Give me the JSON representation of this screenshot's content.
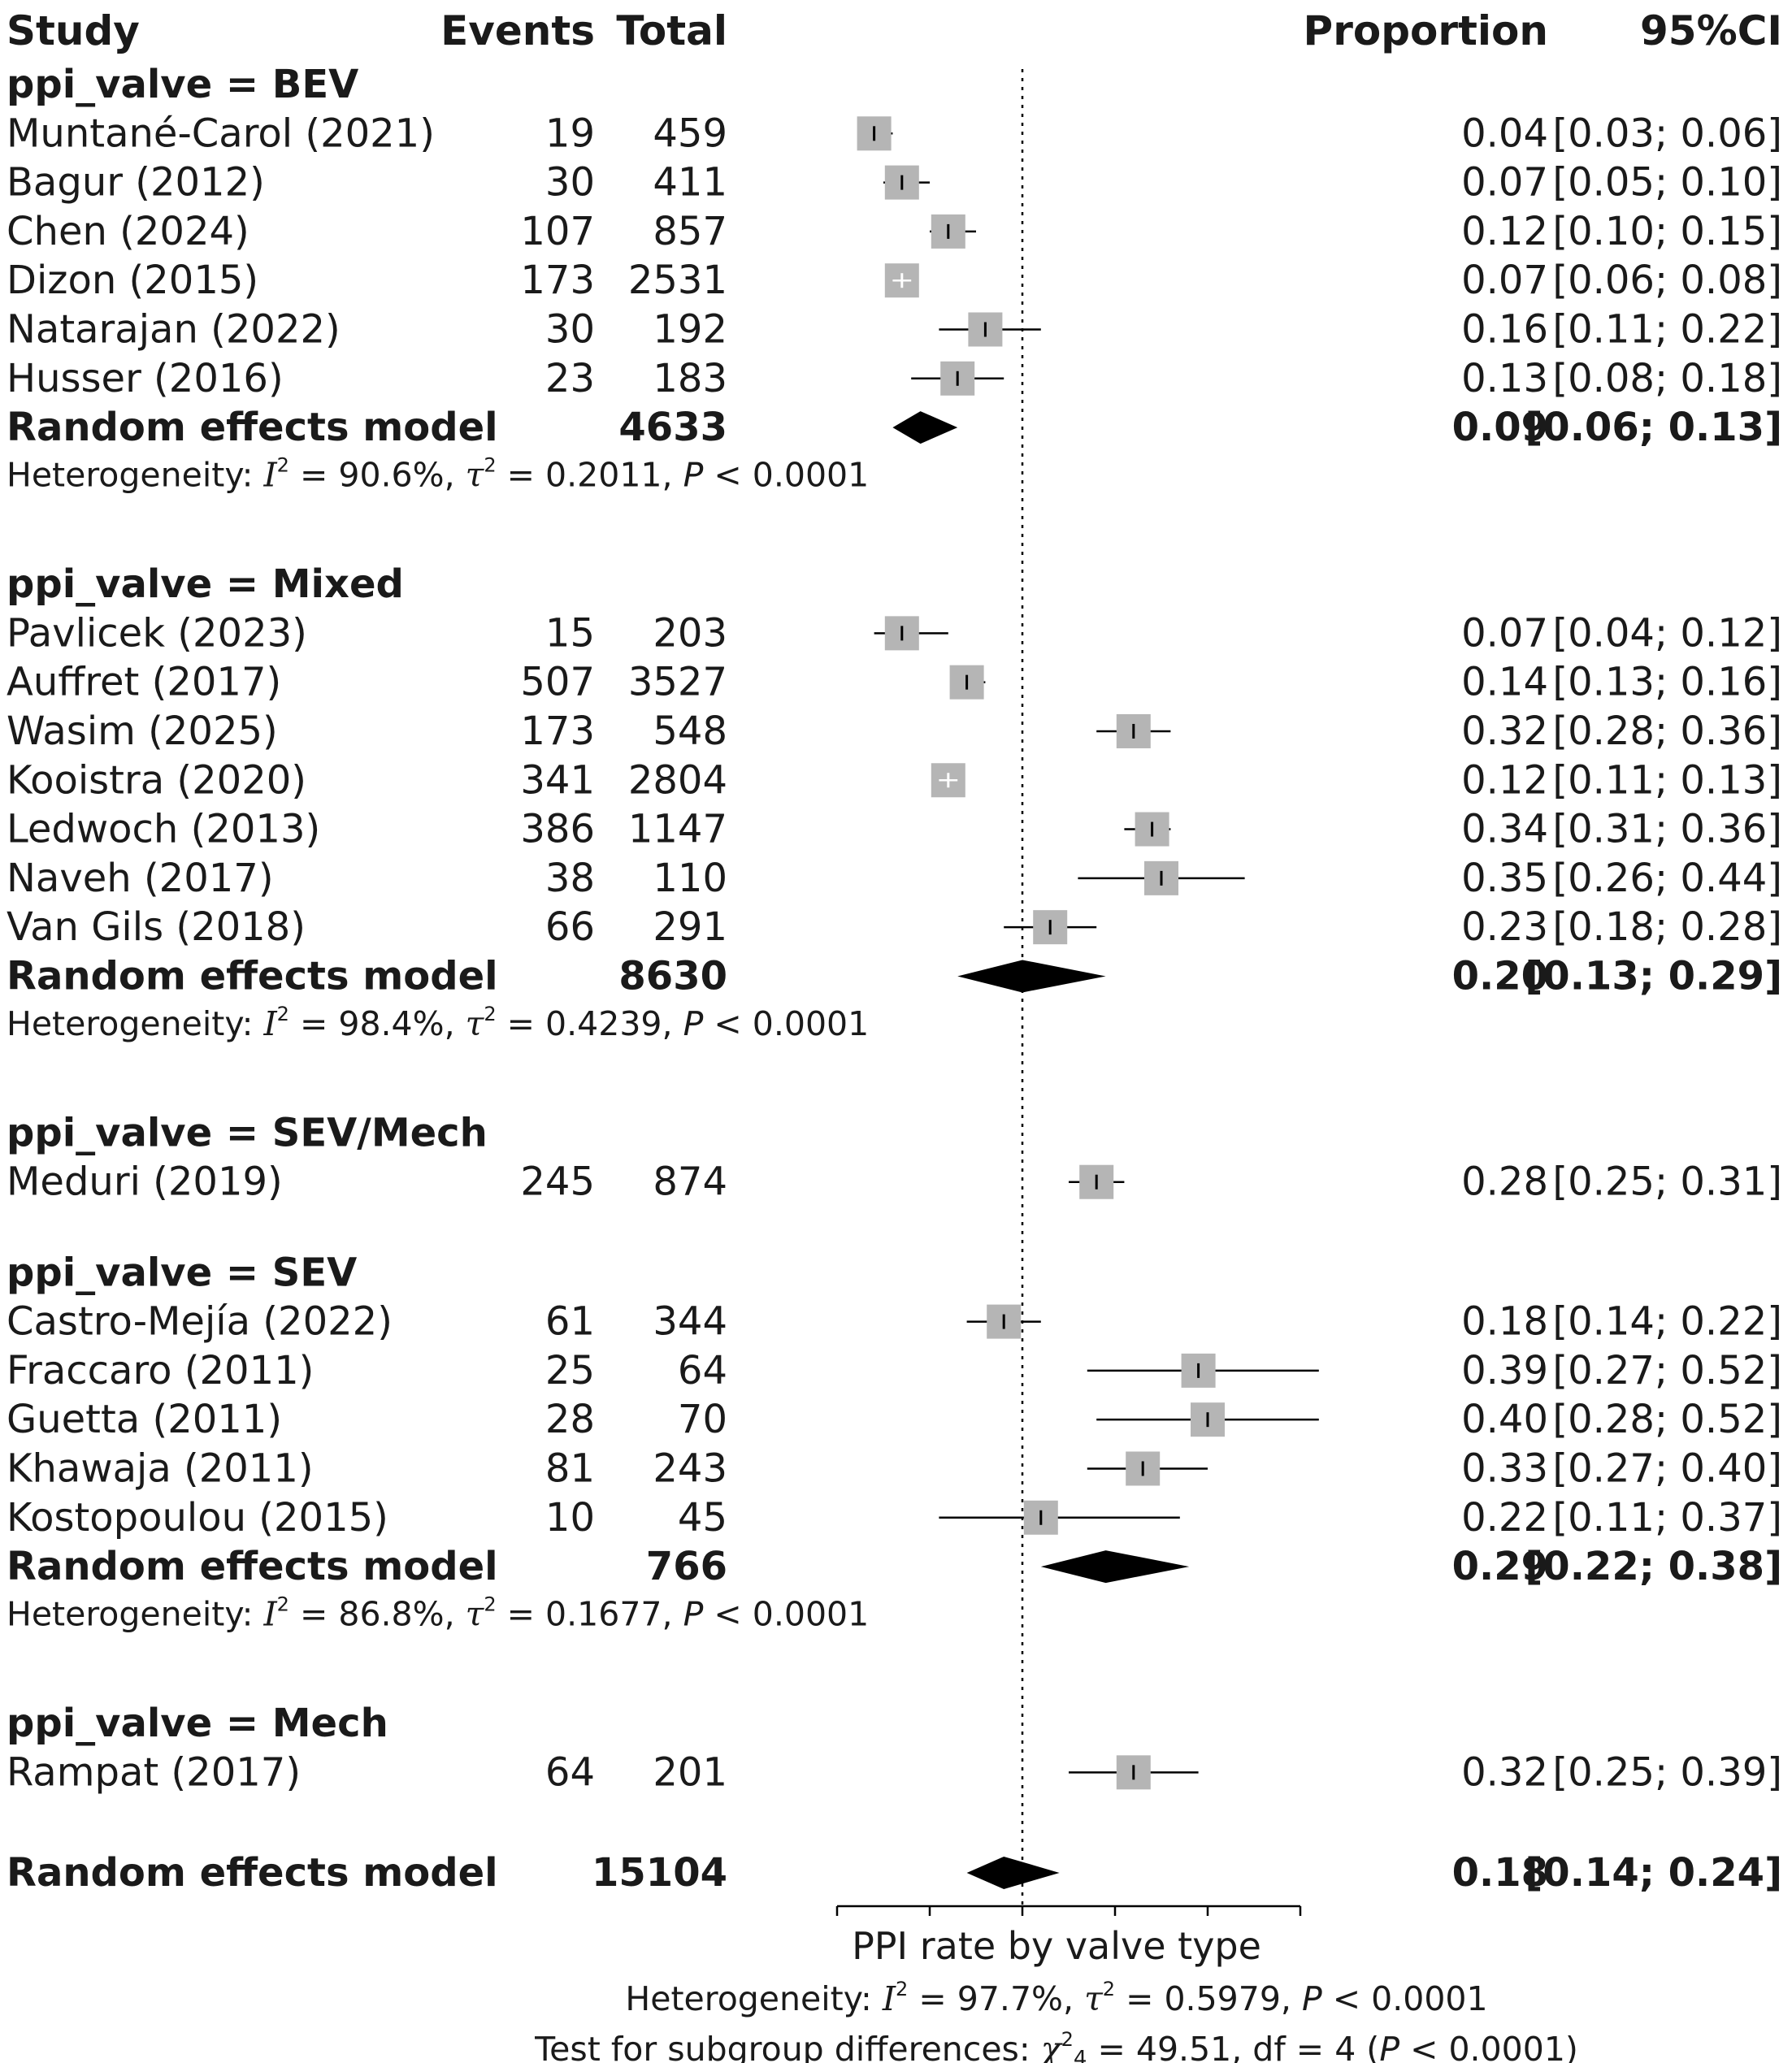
{
  "chart_data": {
    "type": "forest",
    "headers": {
      "study": "Study",
      "events": "Events",
      "total": "Total",
      "proportion": "Proportion",
      "ci": "95%CI"
    },
    "xlim": [
      0,
      0.5
    ],
    "reference_line": 0.2,
    "axis_ticks": [
      0,
      0.1,
      0.2,
      0.3,
      0.4,
      0.5
    ],
    "xlabel": "PPI rate by valve type",
    "subgroups": [
      {
        "label": "ppi_valve = BEV",
        "studies": [
          {
            "study": "Muntané-Carol (2021)",
            "events": "19",
            "total": "459",
            "prop": 0.04,
            "lo": 0.03,
            "hi": 0.06,
            "prop_text": "0.04",
            "ci_text": "[0.03; 0.06]",
            "weight": 1.0
          },
          {
            "study": "Bagur (2012)",
            "events": "30",
            "total": "411",
            "prop": 0.07,
            "lo": 0.05,
            "hi": 0.1,
            "prop_text": "0.07",
            "ci_text": "[0.05; 0.10]",
            "weight": 1.0
          },
          {
            "study": "Chen (2024)",
            "events": "107",
            "total": "857",
            "prop": 0.12,
            "lo": 0.1,
            "hi": 0.15,
            "prop_text": "0.12",
            "ci_text": "[0.10; 0.15]",
            "weight": 1.0
          },
          {
            "study": "Dizon (2015)",
            "events": "173",
            "total": "2531",
            "prop": 0.07,
            "lo": 0.06,
            "hi": 0.08,
            "prop_text": "0.07",
            "ci_text": "[0.06; 0.08]",
            "weight": 1.0
          },
          {
            "study": "Natarajan (2022)",
            "events": "30",
            "total": "192",
            "prop": 0.16,
            "lo": 0.11,
            "hi": 0.22,
            "prop_text": "0.16",
            "ci_text": "[0.11; 0.22]",
            "weight": 1.0
          },
          {
            "study": "Husser (2016)",
            "events": "23",
            "total": "183",
            "prop": 0.13,
            "lo": 0.08,
            "hi": 0.18,
            "prop_text": "0.13",
            "ci_text": "[0.08; 0.18]",
            "weight": 1.0
          }
        ],
        "summary": {
          "label": "Random effects model",
          "total": "4633",
          "prop": 0.09,
          "lo": 0.06,
          "hi": 0.13,
          "prop_text": "0.09",
          "ci_text": "[0.06; 0.13]"
        },
        "heterogeneity": {
          "prefix": "Heterogeneity: ",
          "i2": "I",
          "i2_value": " = 90.6%, ",
          "tau": "τ",
          "tau_value": " = 0.2011, ",
          "p": "P",
          "p_value": " < 0.0001"
        }
      },
      {
        "label": "ppi_valve = Mixed",
        "studies": [
          {
            "study": "Pavlicek (2023)",
            "events": "15",
            "total": "203",
            "prop": 0.07,
            "lo": 0.04,
            "hi": 0.12,
            "prop_text": "0.07",
            "ci_text": "[0.04; 0.12]",
            "weight": 1.0
          },
          {
            "study": "Auffret (2017)",
            "events": "507",
            "total": "3527",
            "prop": 0.14,
            "lo": 0.13,
            "hi": 0.16,
            "prop_text": "0.14",
            "ci_text": "[0.13; 0.16]",
            "weight": 1.0
          },
          {
            "study": "Wasim (2025)",
            "events": "173",
            "total": "548",
            "prop": 0.32,
            "lo": 0.28,
            "hi": 0.36,
            "prop_text": "0.32",
            "ci_text": "[0.28; 0.36]",
            "weight": 1.0
          },
          {
            "study": "Kooistra (2020)",
            "events": "341",
            "total": "2804",
            "prop": 0.12,
            "lo": 0.11,
            "hi": 0.13,
            "prop_text": "0.12",
            "ci_text": "[0.11; 0.13]",
            "weight": 1.0
          },
          {
            "study": "Ledwoch (2013)",
            "events": "386",
            "total": "1147",
            "prop": 0.34,
            "lo": 0.31,
            "hi": 0.36,
            "prop_text": "0.34",
            "ci_text": "[0.31; 0.36]",
            "weight": 1.0
          },
          {
            "study": "Naveh (2017)",
            "events": "38",
            "total": "110",
            "prop": 0.35,
            "lo": 0.26,
            "hi": 0.44,
            "prop_text": "0.35",
            "ci_text": "[0.26; 0.44]",
            "weight": 1.0
          },
          {
            "study": "Van Gils (2018)",
            "events": "66",
            "total": "291",
            "prop": 0.23,
            "lo": 0.18,
            "hi": 0.28,
            "prop_text": "0.23",
            "ci_text": "[0.18; 0.28]",
            "weight": 1.0
          }
        ],
        "summary": {
          "label": "Random effects model",
          "total": "8630",
          "prop": 0.2,
          "lo": 0.13,
          "hi": 0.29,
          "prop_text": "0.20",
          "ci_text": "[0.13; 0.29]"
        },
        "heterogeneity": {
          "prefix": "Heterogeneity: ",
          "i2": "I",
          "i2_value": " = 98.4%, ",
          "tau": "τ",
          "tau_value": " = 0.4239, ",
          "p": "P",
          "p_value": " < 0.0001"
        }
      },
      {
        "label": "ppi_valve = SEV/Mech",
        "studies": [
          {
            "study": "Meduri (2019)",
            "events": "245",
            "total": "874",
            "prop": 0.28,
            "lo": 0.25,
            "hi": 0.31,
            "prop_text": "0.28",
            "ci_text": "[0.25; 0.31]",
            "weight": 1.0
          }
        ],
        "summary": null,
        "heterogeneity": null
      },
      {
        "label": "ppi_valve = SEV",
        "studies": [
          {
            "study": "Castro-Mejía (2022)",
            "events": "61",
            "total": "344",
            "prop": 0.18,
            "lo": 0.14,
            "hi": 0.22,
            "prop_text": "0.18",
            "ci_text": "[0.14; 0.22]",
            "weight": 1.0
          },
          {
            "study": "Fraccaro (2011)",
            "events": "25",
            "total": "64",
            "prop": 0.39,
            "lo": 0.27,
            "hi": 0.52,
            "prop_text": "0.39",
            "ci_text": "[0.27; 0.52]",
            "weight": 1.0
          },
          {
            "study": "Guetta (2011)",
            "events": "28",
            "total": "70",
            "prop": 0.4,
            "lo": 0.28,
            "hi": 0.52,
            "prop_text": "0.40",
            "ci_text": "[0.28; 0.52]",
            "weight": 1.0
          },
          {
            "study": "Khawaja (2011)",
            "events": "81",
            "total": "243",
            "prop": 0.33,
            "lo": 0.27,
            "hi": 0.4,
            "prop_text": "0.33",
            "ci_text": "[0.27; 0.40]",
            "weight": 1.0
          },
          {
            "study": "Kostopoulou (2015)",
            "events": "10",
            "total": "45",
            "prop": 0.22,
            "lo": 0.11,
            "hi": 0.37,
            "prop_text": "0.22",
            "ci_text": "[0.11; 0.37]",
            "weight": 1.0
          }
        ],
        "summary": {
          "label": "Random effects model",
          "total": "766",
          "prop": 0.29,
          "lo": 0.22,
          "hi": 0.38,
          "prop_text": "0.29",
          "ci_text": "[0.22; 0.38]"
        },
        "heterogeneity": {
          "prefix": "Heterogeneity: ",
          "i2": "I",
          "i2_value": " = 86.8%, ",
          "tau": "τ",
          "tau_value": " = 0.1677, ",
          "p": "P",
          "p_value": " < 0.0001"
        }
      },
      {
        "label": "ppi_valve = Mech",
        "studies": [
          {
            "study": "Rampat (2017)",
            "events": "64",
            "total": "201",
            "prop": 0.32,
            "lo": 0.25,
            "hi": 0.39,
            "prop_text": "0.32",
            "ci_text": "[0.25; 0.39]",
            "weight": 1.0
          }
        ],
        "summary": null,
        "heterogeneity": null
      }
    ],
    "overall": {
      "label": "Random effects model",
      "total": "15104",
      "prop": 0.18,
      "lo": 0.14,
      "hi": 0.24,
      "prop_text": "0.18",
      "ci_text": "[0.14; 0.24]"
    },
    "overall_heterogeneity": {
      "prefix": "Heterogeneity: ",
      "i2": "I",
      "i2_value": " = 97.7%, ",
      "tau": "τ",
      "tau_value": " = 0.5979, ",
      "p": "P",
      "p_value": " < 0.0001"
    },
    "subgroup_test": {
      "prefix": "Test for subgroup differences: ",
      "chi": "χ",
      "sup": "2",
      "sub": "4",
      "stat": " = 49.51, df = 4 (",
      "p": "P",
      "p_value": " < 0.0001)"
    },
    "square_color": "#b5b5b5",
    "diamond_color": "#000000"
  }
}
